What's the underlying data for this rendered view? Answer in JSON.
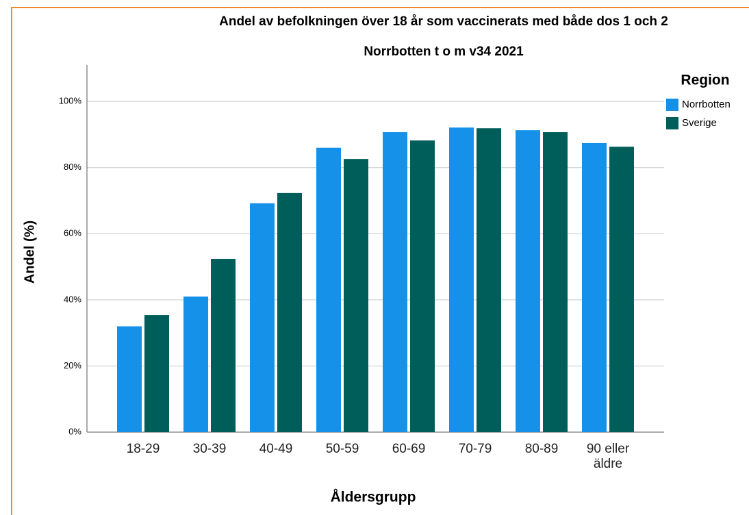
{
  "chart_data": {
    "type": "bar",
    "title": "Andel av befolkningen över 18 år som vaccinerats med både dos 1 och 2",
    "subtitle": "Norrbotten t o m v34 2021",
    "x_label": "Åldersgrupp",
    "y_label": "Andel (%)",
    "legend_title": "Region",
    "legend": "right",
    "grid": true,
    "categories": [
      "18-29",
      "30-39",
      "40-49",
      "50-59",
      "60-69",
      "70-79",
      "80-89",
      "90 eller äldre"
    ],
    "series": [
      {
        "name": "Norrbotten",
        "color": "#1591ea",
        "values": [
          32,
          41,
          69.2,
          86,
          90.7,
          92.1,
          91.3,
          87.4
        ]
      },
      {
        "name": "Sverige",
        "color": "#005e5a",
        "values": [
          35.4,
          52.4,
          72.3,
          82.6,
          88.2,
          91.9,
          90.7,
          86.3
        ]
      }
    ],
    "ylim": [
      0,
      111
    ],
    "yticks": [
      {
        "value": 0,
        "label": "0%"
      },
      {
        "value": 20,
        "label": "20%"
      },
      {
        "value": 40,
        "label": "40%"
      },
      {
        "value": 60,
        "label": "60%"
      },
      {
        "value": 80,
        "label": "80%"
      },
      {
        "value": 100,
        "label": "100%"
      }
    ]
  }
}
